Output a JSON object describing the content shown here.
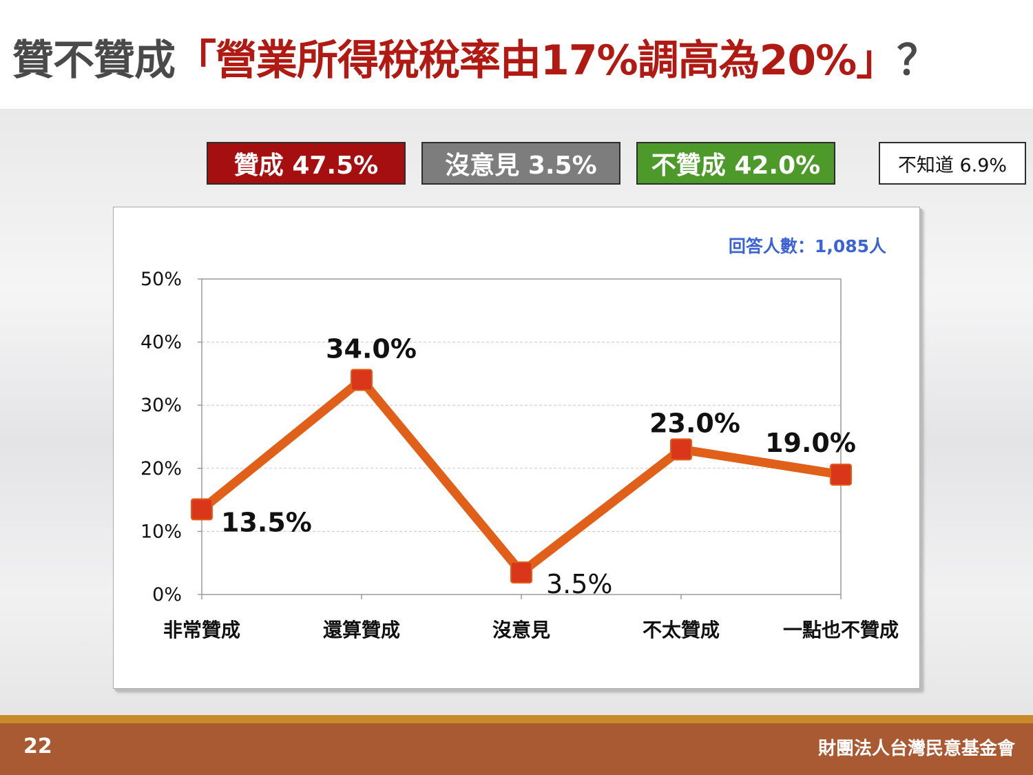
{
  "title": {
    "lead": "贊不贊成",
    "highlight": "「營業所得稅稅率由17%調高為20%」",
    "question_mark": "？"
  },
  "summary_badges": [
    {
      "label": "贊成 47.5%",
      "color": "#a50f0f"
    },
    {
      "label": "沒意見 3.5%",
      "color": "#7d7d7d"
    },
    {
      "label": "不贊成 42.0%",
      "color": "#4d9a2b"
    },
    {
      "label": "不知道 6.9%",
      "color": "#ffffff"
    }
  ],
  "respondents": "回答人數：1,085人",
  "chart_data": {
    "type": "line",
    "categories": [
      "非常贊成",
      "還算贊成",
      "沒意見",
      "不太贊成",
      "一點也不贊成"
    ],
    "values": [
      13.5,
      34.0,
      3.5,
      23.0,
      19.0
    ],
    "data_labels": [
      "13.5%",
      "34.0%",
      "3.5%",
      "23.0%",
      "19.0%"
    ],
    "y_ticks": [
      "0%",
      "10%",
      "20%",
      "30%",
      "40%",
      "50%"
    ],
    "ylim": [
      0,
      50
    ],
    "line_color": "#e0601a",
    "marker_color": "#d9361a",
    "grid": true
  },
  "footer": {
    "page_number": "22",
    "organization": "財團法人台灣民意基金會"
  }
}
